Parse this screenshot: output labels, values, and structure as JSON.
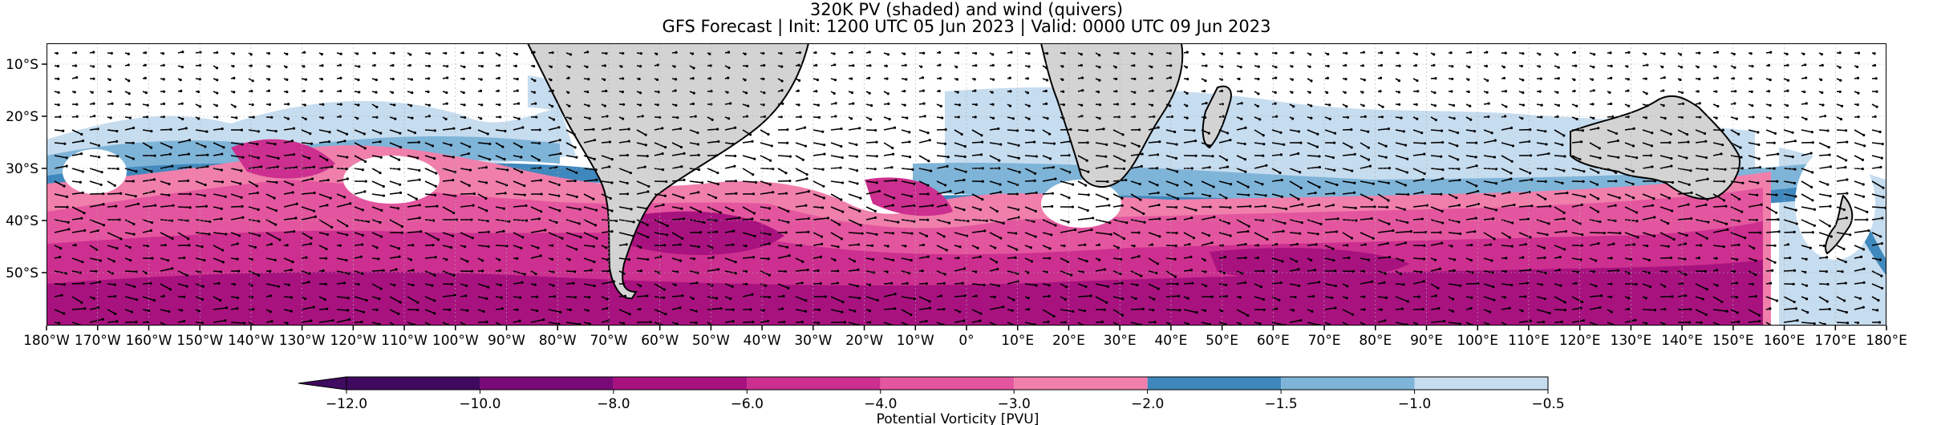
{
  "title_line1": "320K PV (shaded) and wind (quivers)",
  "title_line2": "GFS Forecast | Init: 1200 UTC 05 Jun 2023 | Valid: 0000 UTC 09 Jun 2023",
  "lat_ticks": [
    "10°S",
    "20°S",
    "30°S",
    "40°S",
    "50°S"
  ],
  "lon_ticks": [
    "180°W",
    "170°W",
    "160°W",
    "150°W",
    "140°W",
    "130°W",
    "120°W",
    "110°W",
    "100°W",
    "90°W",
    "80°W",
    "70°W",
    "60°W",
    "50°W",
    "40°W",
    "30°W",
    "20°W",
    "10°W",
    "0°",
    "10°E",
    "20°E",
    "30°E",
    "40°E",
    "50°E",
    "60°E",
    "70°E",
    "80°E",
    "90°E",
    "100°E",
    "110°E",
    "120°E",
    "130°E",
    "140°E",
    "150°E",
    "160°E",
    "170°E",
    "180°E"
  ],
  "colorbar": {
    "label": "Potential Vorticity [PVU]",
    "ticks": [
      "−12.0",
      "−10.0",
      "−8.0",
      "−6.0",
      "−4.0",
      "−3.0",
      "−2.0",
      "−1.5",
      "−1.0",
      "−0.5"
    ],
    "colors": [
      "#3f0a60",
      "#7a0a78",
      "#a8127f",
      "#cc2f8f",
      "#e4559f",
      "#f07fab",
      "#3f88bd",
      "#7eb4d8",
      "#c6dcef"
    ]
  },
  "colors": {
    "land": "#d3d3d3",
    "coast": "#000000",
    "ocean": "#ffffff"
  }
}
